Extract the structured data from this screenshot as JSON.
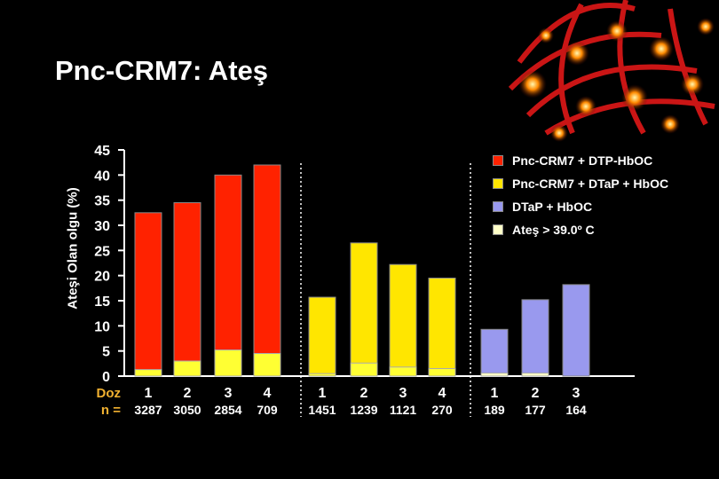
{
  "slide": {
    "title": "Pnc-CRM7:  Ateş"
  },
  "chart_data": {
    "type": "bar",
    "title": "Pnc-CRM7:  Ateş",
    "ylabel": "Ateşi Olan olgu (%)",
    "ylim": [
      0,
      45
    ],
    "yticks": [
      0,
      5,
      10,
      15,
      20,
      25,
      30,
      35,
      40,
      45
    ],
    "grid": false,
    "legend_position": "top-right",
    "row_labels": {
      "dose": "Doz",
      "n": "n ="
    },
    "legend": [
      {
        "label": "Pnc-CRM7 + DTP-HbOC",
        "color": "#ff2200"
      },
      {
        "label": "Pnc-CRM7 + DTaP + HbOC",
        "color": "#ffe600"
      },
      {
        "label": "DTaP + HbOC",
        "color": "#9999ee"
      },
      {
        "label": "Ateş > 39.0º C",
        "color": "#ffffc8"
      }
    ],
    "groups": [
      {
        "series": "Pnc-CRM7 + DTP-HbOC",
        "color": "#ff2200",
        "doses": [
          "1",
          "2",
          "3",
          "4"
        ],
        "n": [
          "3287",
          "3050",
          "2854",
          "709"
        ],
        "values": [
          32.5,
          34.5,
          40,
          42
        ],
        "fever_over_39": [
          1.3,
          3,
          5.2,
          4.5
        ]
      },
      {
        "series": "Pnc-CRM7 + DTaP + HbOC",
        "color": "#ffe600",
        "doses": [
          "1",
          "2",
          "3",
          "4"
        ],
        "n": [
          "1451",
          "1239",
          "1121",
          "270"
        ],
        "values": [
          15.7,
          26.5,
          22.2,
          19.5
        ],
        "fever_over_39": [
          0.5,
          2.6,
          1.8,
          1.5
        ]
      },
      {
        "series": "DTaP + HbOC",
        "color": "#9999ee",
        "doses": [
          "1",
          "2",
          "3"
        ],
        "n": [
          "189",
          "177",
          "164"
        ],
        "values": [
          9.3,
          15.2,
          18.2
        ],
        "fever_over_39": [
          0.6,
          0.6,
          0
        ]
      }
    ]
  }
}
